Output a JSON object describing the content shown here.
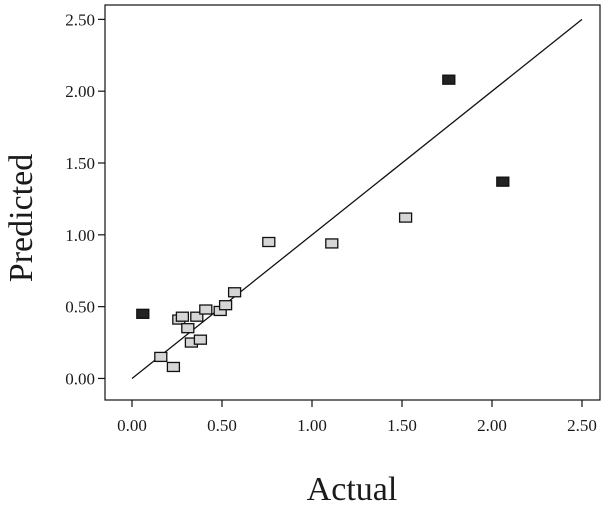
{
  "chart_data": {
    "type": "scatter",
    "title": "",
    "xlabel": "Actual",
    "ylabel": "Predicted",
    "xlim": [
      -0.15,
      2.6
    ],
    "ylim": [
      -0.15,
      2.6
    ],
    "x_ticks": [
      "0.00",
      "0.50",
      "1.00",
      "1.50",
      "2.00",
      "2.50"
    ],
    "y_ticks": [
      "0.00",
      "0.50",
      "1.00",
      "1.50",
      "2.00",
      "2.50"
    ],
    "grid": false,
    "legend": "none",
    "reference_line": {
      "from": [
        0,
        0
      ],
      "to": [
        2.5,
        2.5
      ]
    },
    "colors": {
      "marker_fill": "#d6d6d6",
      "marker_fill_dark": "#222222",
      "marker_stroke": "#111111",
      "line": "#111111"
    },
    "series": [
      {
        "points": [
          {
            "x": 0.06,
            "y": 0.45,
            "dark": true
          },
          {
            "x": 0.16,
            "y": 0.15,
            "dark": false
          },
          {
            "x": 0.23,
            "y": 0.08,
            "dark": false
          },
          {
            "x": 0.26,
            "y": 0.41,
            "dark": false
          },
          {
            "x": 0.28,
            "y": 0.43,
            "dark": false
          },
          {
            "x": 0.31,
            "y": 0.35,
            "dark": false
          },
          {
            "x": 0.33,
            "y": 0.25,
            "dark": false
          },
          {
            "x": 0.36,
            "y": 0.43,
            "dark": false
          },
          {
            "x": 0.38,
            "y": 0.27,
            "dark": false
          },
          {
            "x": 0.41,
            "y": 0.48,
            "dark": false
          },
          {
            "x": 0.49,
            "y": 0.47,
            "dark": false
          },
          {
            "x": 0.52,
            "y": 0.51,
            "dark": false
          },
          {
            "x": 0.57,
            "y": 0.6,
            "dark": false
          },
          {
            "x": 0.76,
            "y": 0.95,
            "dark": false
          },
          {
            "x": 1.11,
            "y": 0.94,
            "dark": false
          },
          {
            "x": 1.52,
            "y": 1.12,
            "dark": false
          },
          {
            "x": 1.76,
            "y": 2.08,
            "dark": true
          },
          {
            "x": 2.06,
            "y": 1.37,
            "dark": true
          }
        ]
      }
    ]
  }
}
